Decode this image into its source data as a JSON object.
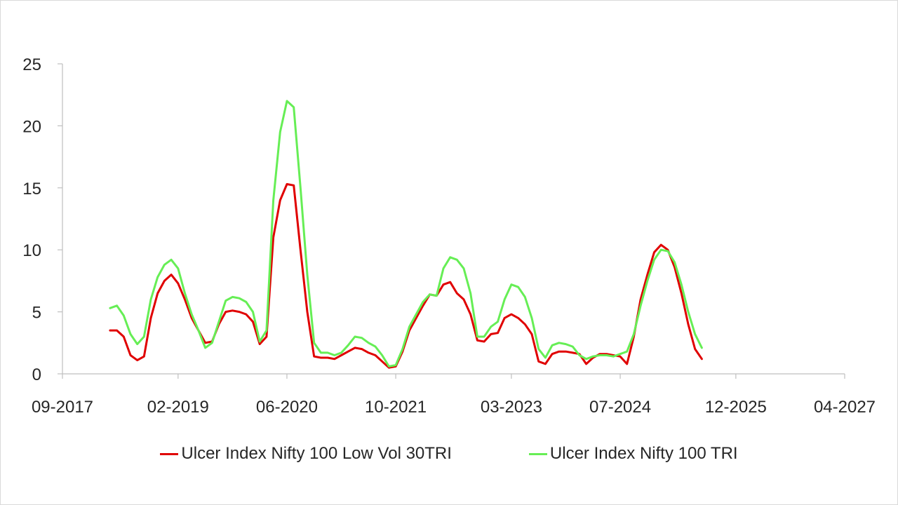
{
  "chart_data": {
    "type": "line",
    "title": "",
    "xlabel": "",
    "ylabel": "",
    "x_is_date": true,
    "xlim": [
      "2017-09",
      "2027-04"
    ],
    "ylim": [
      0,
      25
    ],
    "y_ticks": [
      0,
      5,
      10,
      15,
      20,
      25
    ],
    "x_ticks": [
      {
        "date": "2017-09",
        "label": "09-2017"
      },
      {
        "date": "2019-02",
        "label": "02-2019"
      },
      {
        "date": "2020-06",
        "label": "06-2020"
      },
      {
        "date": "2021-10",
        "label": "10-2021"
      },
      {
        "date": "2023-03",
        "label": "03-2023"
      },
      {
        "date": "2024-07",
        "label": "07-2024"
      },
      {
        "date": "2025-12",
        "label": "12-2025"
      },
      {
        "date": "2027-04",
        "label": "04-2027"
      }
    ],
    "grid": false,
    "legend_position": "bottom",
    "series": [
      {
        "name": "Ulcer Index Nifty 100 Low Vol 30TRI",
        "color": "#e00000",
        "points": [
          [
            "2018-04",
            3.5
          ],
          [
            "2018-05",
            3.5
          ],
          [
            "2018-06",
            3.0
          ],
          [
            "2018-07",
            1.5
          ],
          [
            "2018-08",
            1.1
          ],
          [
            "2018-09",
            1.4
          ],
          [
            "2018-10",
            4.5
          ],
          [
            "2018-11",
            6.5
          ],
          [
            "2018-12",
            7.5
          ],
          [
            "2019-01",
            8.0
          ],
          [
            "2019-02",
            7.3
          ],
          [
            "2019-03",
            6.0
          ],
          [
            "2019-04",
            4.5
          ],
          [
            "2019-05",
            3.5
          ],
          [
            "2019-06",
            2.5
          ],
          [
            "2019-07",
            2.6
          ],
          [
            "2019-08",
            4.0
          ],
          [
            "2019-09",
            5.0
          ],
          [
            "2019-10",
            5.1
          ],
          [
            "2019-11",
            5.0
          ],
          [
            "2019-12",
            4.8
          ],
          [
            "2020-01",
            4.2
          ],
          [
            "2020-02",
            2.4
          ],
          [
            "2020-03",
            3.0
          ],
          [
            "2020-04",
            11.0
          ],
          [
            "2020-05",
            14.0
          ],
          [
            "2020-06",
            15.3
          ],
          [
            "2020-07",
            15.2
          ],
          [
            "2020-08",
            10.0
          ],
          [
            "2020-09",
            5.0
          ],
          [
            "2020-10",
            1.4
          ],
          [
            "2020-11",
            1.3
          ],
          [
            "2020-12",
            1.3
          ],
          [
            "2021-01",
            1.2
          ],
          [
            "2021-02",
            1.5
          ],
          [
            "2021-03",
            1.8
          ],
          [
            "2021-04",
            2.1
          ],
          [
            "2021-05",
            2.0
          ],
          [
            "2021-06",
            1.7
          ],
          [
            "2021-07",
            1.5
          ],
          [
            "2021-08",
            1.0
          ],
          [
            "2021-09",
            0.5
          ],
          [
            "2021-10",
            0.6
          ],
          [
            "2021-11",
            1.8
          ],
          [
            "2021-12",
            3.5
          ],
          [
            "2022-01",
            4.5
          ],
          [
            "2022-02",
            5.5
          ],
          [
            "2022-03",
            6.4
          ],
          [
            "2022-04",
            6.3
          ],
          [
            "2022-05",
            7.2
          ],
          [
            "2022-06",
            7.4
          ],
          [
            "2022-07",
            6.5
          ],
          [
            "2022-08",
            6.0
          ],
          [
            "2022-09",
            4.8
          ],
          [
            "2022-10",
            2.7
          ],
          [
            "2022-11",
            2.6
          ],
          [
            "2022-12",
            3.2
          ],
          [
            "2023-01",
            3.3
          ],
          [
            "2023-02",
            4.5
          ],
          [
            "2023-03",
            4.8
          ],
          [
            "2023-04",
            4.5
          ],
          [
            "2023-05",
            4.0
          ],
          [
            "2023-06",
            3.2
          ],
          [
            "2023-07",
            1.0
          ],
          [
            "2023-08",
            0.8
          ],
          [
            "2023-09",
            1.6
          ],
          [
            "2023-10",
            1.8
          ],
          [
            "2023-11",
            1.8
          ],
          [
            "2023-12",
            1.7
          ],
          [
            "2024-01",
            1.6
          ],
          [
            "2024-02",
            0.8
          ],
          [
            "2024-03",
            1.3
          ],
          [
            "2024-04",
            1.6
          ],
          [
            "2024-05",
            1.6
          ],
          [
            "2024-06",
            1.5
          ],
          [
            "2024-07",
            1.4
          ],
          [
            "2024-08",
            0.8
          ],
          [
            "2024-09",
            3.0
          ],
          [
            "2024-10",
            6.0
          ],
          [
            "2024-11",
            8.0
          ],
          [
            "2024-12",
            9.8
          ],
          [
            "2025-01",
            10.4
          ],
          [
            "2025-02",
            10.0
          ],
          [
            "2025-03",
            8.6
          ],
          [
            "2025-04",
            6.5
          ],
          [
            "2025-05",
            4.0
          ],
          [
            "2025-06",
            2.0
          ],
          [
            "2025-07",
            1.2
          ]
        ]
      },
      {
        "name": "Ulcer Index Nifty 100 TRI",
        "color": "#66ee55",
        "points": [
          [
            "2018-04",
            5.3
          ],
          [
            "2018-05",
            5.5
          ],
          [
            "2018-06",
            4.7
          ],
          [
            "2018-07",
            3.2
          ],
          [
            "2018-08",
            2.4
          ],
          [
            "2018-09",
            3.0
          ],
          [
            "2018-10",
            6.0
          ],
          [
            "2018-11",
            7.8
          ],
          [
            "2018-12",
            8.8
          ],
          [
            "2019-01",
            9.2
          ],
          [
            "2019-02",
            8.5
          ],
          [
            "2019-03",
            6.5
          ],
          [
            "2019-04",
            4.8
          ],
          [
            "2019-05",
            3.5
          ],
          [
            "2019-06",
            2.1
          ],
          [
            "2019-07",
            2.5
          ],
          [
            "2019-08",
            4.2
          ],
          [
            "2019-09",
            5.9
          ],
          [
            "2019-10",
            6.2
          ],
          [
            "2019-11",
            6.1
          ],
          [
            "2019-12",
            5.8
          ],
          [
            "2020-01",
            5.0
          ],
          [
            "2020-02",
            2.6
          ],
          [
            "2020-03",
            3.5
          ],
          [
            "2020-04",
            14.0
          ],
          [
            "2020-05",
            19.5
          ],
          [
            "2020-06",
            22.0
          ],
          [
            "2020-07",
            21.5
          ],
          [
            "2020-08",
            15.0
          ],
          [
            "2020-09",
            8.0
          ],
          [
            "2020-10",
            2.5
          ],
          [
            "2020-11",
            1.7
          ],
          [
            "2020-12",
            1.7
          ],
          [
            "2021-01",
            1.5
          ],
          [
            "2021-02",
            1.7
          ],
          [
            "2021-03",
            2.3
          ],
          [
            "2021-04",
            3.0
          ],
          [
            "2021-05",
            2.9
          ],
          [
            "2021-06",
            2.5
          ],
          [
            "2021-07",
            2.2
          ],
          [
            "2021-08",
            1.5
          ],
          [
            "2021-09",
            0.6
          ],
          [
            "2021-10",
            0.7
          ],
          [
            "2021-11",
            2.0
          ],
          [
            "2021-12",
            3.8
          ],
          [
            "2022-01",
            4.8
          ],
          [
            "2022-02",
            5.8
          ],
          [
            "2022-03",
            6.4
          ],
          [
            "2022-04",
            6.3
          ],
          [
            "2022-05",
            8.5
          ],
          [
            "2022-06",
            9.4
          ],
          [
            "2022-07",
            9.2
          ],
          [
            "2022-08",
            8.5
          ],
          [
            "2022-09",
            6.5
          ],
          [
            "2022-10",
            3.0
          ],
          [
            "2022-11",
            3.0
          ],
          [
            "2022-12",
            3.8
          ],
          [
            "2023-01",
            4.2
          ],
          [
            "2023-02",
            6.0
          ],
          [
            "2023-03",
            7.2
          ],
          [
            "2023-04",
            7.0
          ],
          [
            "2023-05",
            6.2
          ],
          [
            "2023-06",
            4.5
          ],
          [
            "2023-07",
            2.0
          ],
          [
            "2023-08",
            1.3
          ],
          [
            "2023-09",
            2.3
          ],
          [
            "2023-10",
            2.5
          ],
          [
            "2023-11",
            2.4
          ],
          [
            "2023-12",
            2.2
          ],
          [
            "2024-01",
            1.5
          ],
          [
            "2024-02",
            1.2
          ],
          [
            "2024-03",
            1.4
          ],
          [
            "2024-04",
            1.5
          ],
          [
            "2024-05",
            1.5
          ],
          [
            "2024-06",
            1.4
          ],
          [
            "2024-07",
            1.6
          ],
          [
            "2024-08",
            1.8
          ],
          [
            "2024-09",
            3.2
          ],
          [
            "2024-10",
            5.5
          ],
          [
            "2024-11",
            7.5
          ],
          [
            "2024-12",
            9.2
          ],
          [
            "2025-01",
            10.0
          ],
          [
            "2025-02",
            9.9
          ],
          [
            "2025-03",
            9.0
          ],
          [
            "2025-04",
            7.2
          ],
          [
            "2025-05",
            5.0
          ],
          [
            "2025-06",
            3.2
          ],
          [
            "2025-07",
            2.1
          ]
        ]
      }
    ]
  }
}
